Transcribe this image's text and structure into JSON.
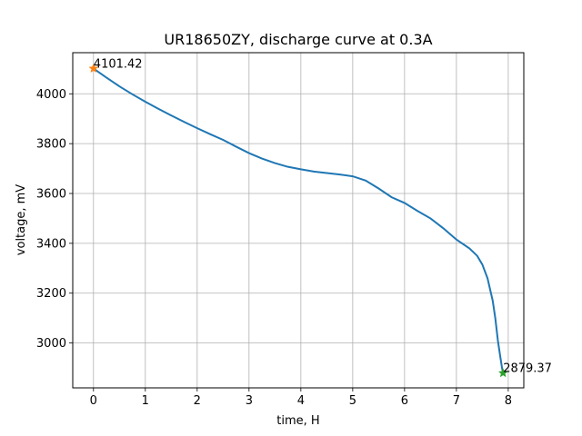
{
  "chart_data": {
    "type": "line",
    "title": "UR18650ZY, discharge curve at 0.3A",
    "xlabel": "time, H",
    "ylabel": "voltage, mV",
    "xlim": [
      -0.4,
      8.3
    ],
    "ylim": [
      2820,
      4165
    ],
    "xticks": [
      0,
      1,
      2,
      3,
      4,
      5,
      6,
      7,
      8
    ],
    "yticks": [
      3000,
      3200,
      3400,
      3600,
      3800,
      4000
    ],
    "grid": true,
    "series": [
      {
        "color": "#1f77b4",
        "x": [
          0,
          0.25,
          0.5,
          0.75,
          1.0,
          1.25,
          1.5,
          1.75,
          2.0,
          2.25,
          2.5,
          2.75,
          3.0,
          3.25,
          3.5,
          3.75,
          4.0,
          4.25,
          4.5,
          4.75,
          5.0,
          5.25,
          5.5,
          5.75,
          6.0,
          6.25,
          6.5,
          6.75,
          7.0,
          7.25,
          7.4,
          7.5,
          7.6,
          7.7,
          7.75,
          7.8,
          7.85,
          7.88,
          7.9
        ],
        "y": [
          4101.42,
          4065,
          4030,
          3998,
          3968,
          3940,
          3913,
          3887,
          3862,
          3838,
          3815,
          3788,
          3762,
          3740,
          3722,
          3707,
          3697,
          3688,
          3682,
          3676,
          3669,
          3652,
          3620,
          3585,
          3562,
          3530,
          3500,
          3460,
          3415,
          3380,
          3350,
          3315,
          3260,
          3170,
          3100,
          3010,
          2940,
          2900,
          2879.37
        ]
      }
    ],
    "markers": [
      {
        "label": "4101.42",
        "x": 0,
        "y": 4101.42,
        "color": "#ff7f0e",
        "symbol": "star"
      },
      {
        "label": "2879.37",
        "x": 7.9,
        "y": 2879.37,
        "color": "#2ca02c",
        "symbol": "star"
      }
    ]
  }
}
